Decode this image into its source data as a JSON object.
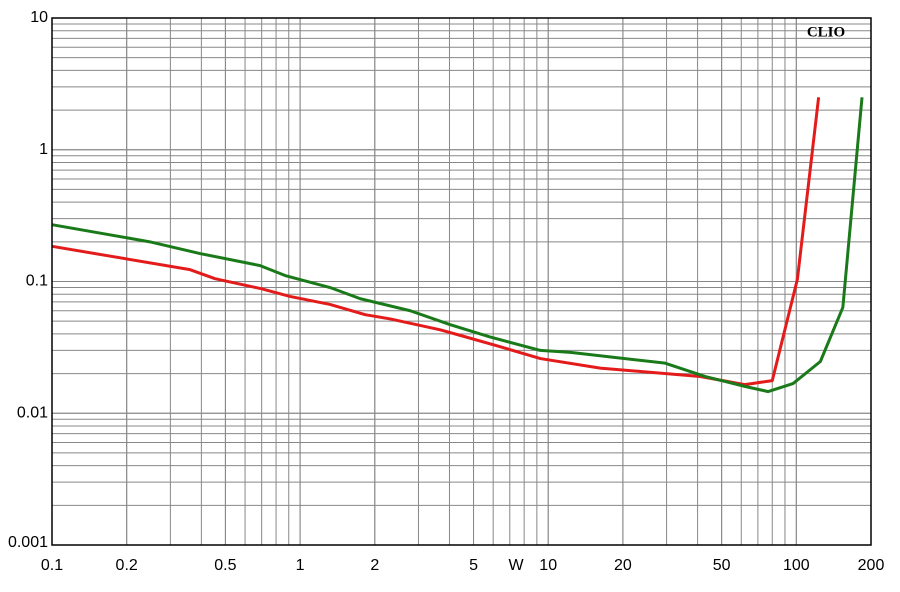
{
  "chart_data": {
    "type": "line",
    "brand": "CLIO",
    "x_label": "W",
    "xscale": "log",
    "yscale": "log",
    "grid": true,
    "minor_grid": true,
    "xlim": [
      0.1,
      200
    ],
    "ylim": [
      0.001,
      10
    ],
    "xticks": [
      0.1,
      0.2,
      0.5,
      1,
      2,
      5,
      10,
      20,
      50,
      100,
      200
    ],
    "yticks": [
      0.001,
      0.01,
      0.1,
      1,
      10
    ],
    "series": [
      {
        "name": null,
        "color": "#e31b1b",
        "x": [
          0.1,
          0.36,
          0.454,
          0.7,
          0.91,
          1.32,
          1.83,
          2.31,
          3.67,
          4.42,
          6.4,
          9.3,
          16.2,
          41,
          62,
          80,
          101,
          123
        ],
        "values": [
          0.185,
          0.123,
          0.105,
          0.088,
          0.077,
          0.067,
          0.056,
          0.052,
          0.043,
          0.039,
          0.032,
          0.026,
          0.022,
          0.019,
          0.0165,
          0.0177,
          0.104,
          2.5
        ]
      },
      {
        "name": null,
        "color": "#1a7a1a",
        "x": [
          0.1,
          0.248,
          0.395,
          0.69,
          0.87,
          1.32,
          1.75,
          2.78,
          4.03,
          5.8,
          9.3,
          12.3,
          29.6,
          43,
          62,
          77,
          97,
          125,
          154,
          184
        ],
        "values": [
          0.27,
          0.2,
          0.163,
          0.132,
          0.111,
          0.09,
          0.074,
          0.06,
          0.047,
          0.038,
          0.03,
          0.029,
          0.024,
          0.019,
          0.016,
          0.0146,
          0.0168,
          0.0247,
          0.0635,
          2.5
        ]
      }
    ]
  }
}
